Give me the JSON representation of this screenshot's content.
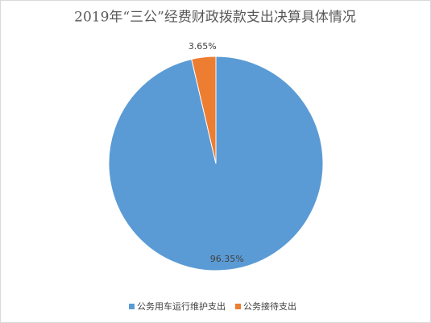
{
  "chart_data": {
    "type": "pie",
    "title": "2019年“三公”经费财政拨款支出决算具体情况",
    "categories": [
      "公务用车运行维护支出",
      "公务接待支出"
    ],
    "values": [
      96.35,
      3.65
    ],
    "value_labels": [
      "96.35%",
      "3.65%"
    ],
    "colors": [
      "#5b9bd5",
      "#ed7d31"
    ]
  }
}
